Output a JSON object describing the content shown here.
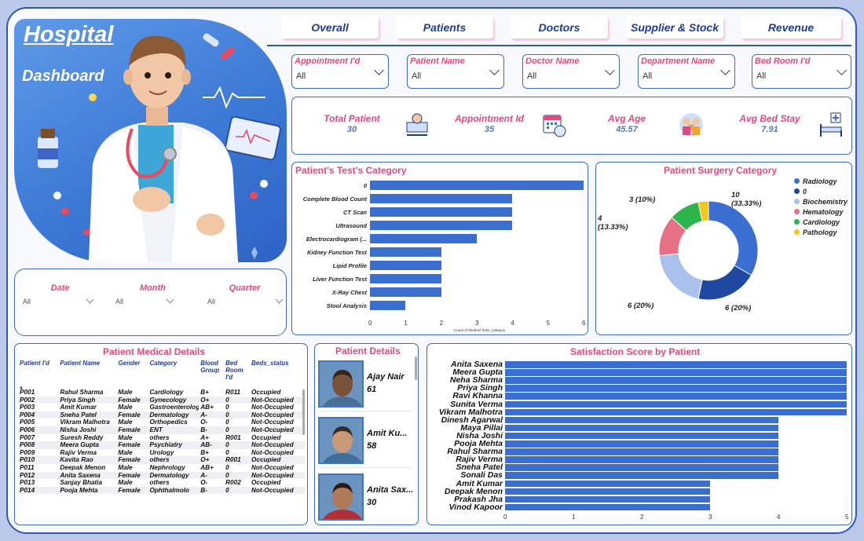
{
  "header": {
    "title_line1": "Hospital",
    "title_line2": "Dashboard"
  },
  "nav_tabs": [
    "Overall",
    "Patients",
    "Doctors",
    "Supplier & Stock",
    "Revenue"
  ],
  "filters": [
    {
      "label": "Appointment I'd",
      "value": "All"
    },
    {
      "label": "Patient Name",
      "value": "All"
    },
    {
      "label": "Doctor Name",
      "value": "All"
    },
    {
      "label": "Department Name",
      "value": "All"
    },
    {
      "label": "Bed Room I'd",
      "value": "All"
    }
  ],
  "kpis": [
    {
      "label": "Total Patient",
      "value": "30",
      "icon": "patient-bed-icon"
    },
    {
      "label": "Appointment Id",
      "value": "35",
      "icon": "calendar-clock-icon"
    },
    {
      "label": "Avg Age",
      "value": "45.57",
      "icon": "family-icon"
    },
    {
      "label": "Avg Bed Stay",
      "value": "7.91",
      "icon": "hospital-bed-icon"
    }
  ],
  "date_filters": [
    {
      "label": "Date",
      "value": "All"
    },
    {
      "label": "Month",
      "value": "All"
    },
    {
      "label": "Quarter",
      "value": "All"
    }
  ],
  "colors": {
    "accent": "#e5487a",
    "bar": "#3a6fd1",
    "border": "#2d5bb3"
  },
  "chart_data": [
    {
      "type": "bar",
      "title": "Patient's Test's Category",
      "orientation": "horizontal",
      "xlabel": "Count of Medical Tests_category",
      "categories": [
        "0",
        "Complete Blood Count",
        "CT Scan",
        "Ultrasound",
        "Electrocardiogram (...",
        "Kidney Function Test",
        "Lipid Profile",
        "Liver Function Test",
        "X-Ray Chest",
        "Stool Analysis"
      ],
      "values": [
        6,
        4,
        4,
        4,
        3,
        2,
        2,
        2,
        2,
        1
      ],
      "xticks": [
        "0",
        "1",
        "2",
        "3",
        "4",
        "5",
        "6"
      ],
      "xlim": [
        0,
        6
      ]
    },
    {
      "type": "pie",
      "title": "Patient Surgery Category",
      "donut": true,
      "labels": [
        "Radiology",
        "0",
        "Biochemistry",
        "Hematology",
        "Cardiology",
        "Pathology"
      ],
      "values": [
        10,
        6,
        6,
        4,
        3,
        1
      ],
      "colors": [
        "#3a6fd1",
        "#1f48a3",
        "#a9c1ec",
        "#e76f86",
        "#2bb54a",
        "#f5c518"
      ],
      "data_labels": [
        "10\n(33.33%)",
        "6 (20%)",
        "6 (20%)",
        "4\n(13.33%)",
        "3 (10%)",
        ""
      ],
      "legend": "right"
    },
    {
      "type": "bar",
      "title": "Satisfaction Score by Patient",
      "orientation": "horizontal",
      "categories": [
        "Anita Saxena",
        "Meera Gupta",
        "Neha Sharma",
        "Priya Singh",
        "Ravi Khanna",
        "Sunita Verma",
        "Vikram Malhotra",
        "Dinesh Agarwal",
        "Maya Pillai",
        "Nisha Joshi",
        "Pooja Mehta",
        "Rahul Sharma",
        "Rajiv Verma",
        "Sneha Patel",
        "Sonali Das",
        "Amit Kumar",
        "Deepak Menon",
        "Prakash Jha",
        "Vinod Kapoor"
      ],
      "values": [
        5,
        5,
        5,
        5,
        5,
        5,
        5,
        4,
        4,
        4,
        4,
        4,
        4,
        4,
        4,
        3,
        3,
        3,
        3
      ],
      "xticks": [
        "0",
        "1",
        "2",
        "3",
        "4",
        "5"
      ],
      "xlim": [
        0,
        5
      ]
    }
  ],
  "medical_details": {
    "title": "Patient Medical Details",
    "columns": [
      "Patient I'd",
      "Patient Name",
      "Gender",
      "Category",
      "Blood Group",
      "Bed Room I'd",
      "Beds_status"
    ],
    "rows": [
      [
        "P001",
        "Rahul Sharma",
        "Male",
        "Cardiology",
        "B+",
        "R011",
        "Occupied"
      ],
      [
        "P002",
        "Priya Singh",
        "Female",
        "Gynecology",
        "O+",
        "0",
        "Not-Occupied"
      ],
      [
        "P003",
        "Amit Kumar",
        "Male",
        "Gastroenterology",
        "AB+",
        "0",
        "Not-Occupied"
      ],
      [
        "P004",
        "Sneha Patel",
        "Female",
        "Dermatology",
        "A-",
        "0",
        "Not-Occupied"
      ],
      [
        "P005",
        "Vikram Malhotra",
        "Male",
        "Orthopedics",
        "O-",
        "0",
        "Not-Occupied"
      ],
      [
        "P006",
        "Nisha Joshi",
        "Female",
        "ENT",
        "B-",
        "0",
        "Not-Occupied"
      ],
      [
        "P007",
        "Suresh Reddy",
        "Male",
        "others",
        "A+",
        "R001",
        "Occupied"
      ],
      [
        "P008",
        "Meera Gupta",
        "Female",
        "Psychiatry",
        "AB-",
        "0",
        "Not-Occupied"
      ],
      [
        "P009",
        "Rajiv Verma",
        "Male",
        "Urology",
        "B+",
        "0",
        "Not-Occupied"
      ],
      [
        "P010",
        "Kavita Rao",
        "Female",
        "others",
        "O+",
        "R001",
        "Occupied"
      ],
      [
        "P011",
        "Deepak Menon",
        "Male",
        "Nephrology",
        "AB+",
        "0",
        "Not-Occupied"
      ],
      [
        "P012",
        "Anita Saxena",
        "Female",
        "Dermatology",
        "A-",
        "0",
        "Not-Occupied"
      ],
      [
        "P013",
        "Sanjay Bhatia",
        "Male",
        "others",
        "O-",
        "R002",
        "Occupied"
      ],
      [
        "P014",
        "Pooja Mehta",
        "Female",
        "Ophthalmolo",
        "B-",
        "0",
        "Not-Occupied"
      ]
    ]
  },
  "patient_details": {
    "title": "Patient Details",
    "cards": [
      {
        "name": "Ajay Nair",
        "age": "61"
      },
      {
        "name": "Amit Ku...",
        "age": "58"
      },
      {
        "name": "Anita Sax...",
        "age": "30"
      }
    ]
  }
}
